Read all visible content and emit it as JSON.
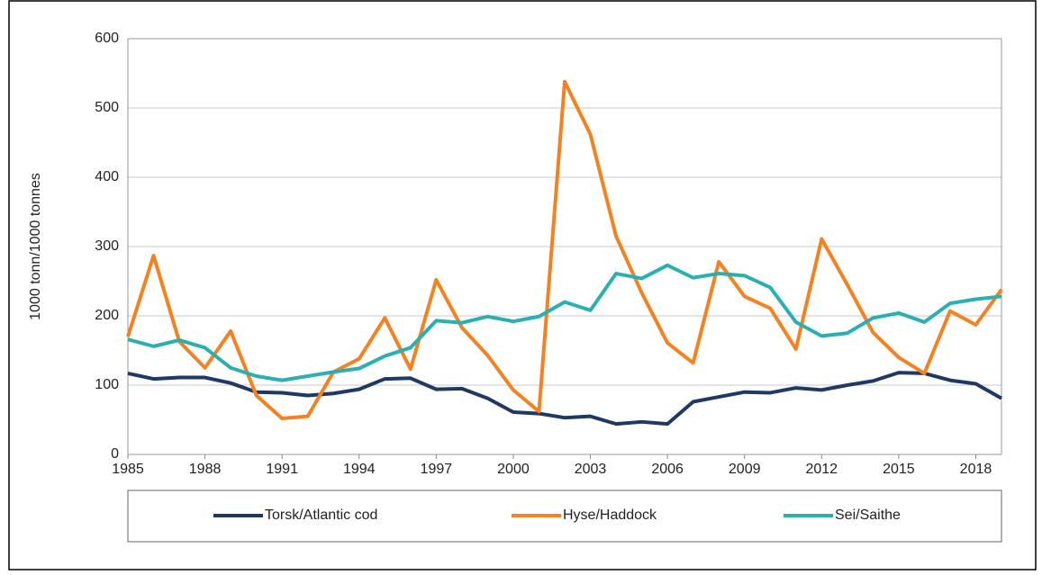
{
  "chart_data": {
    "type": "line",
    "y_label": "1000 tonn/1000 tonnes",
    "x": [
      1985,
      1986,
      1987,
      1988,
      1989,
      1990,
      1991,
      1992,
      1993,
      1994,
      1995,
      1996,
      1997,
      1998,
      1999,
      2000,
      2001,
      2002,
      2003,
      2004,
      2005,
      2006,
      2007,
      2008,
      2009,
      2010,
      2011,
      2012,
      2013,
      2014,
      2015,
      2016,
      2017,
      2018,
      2019
    ],
    "xlim": [
      1985,
      2019
    ],
    "xticks": [
      1985,
      1988,
      1991,
      1994,
      1997,
      2000,
      2003,
      2006,
      2009,
      2012,
      2015,
      2018
    ],
    "ylim": [
      0,
      600
    ],
    "yticks": [
      0,
      100,
      200,
      300,
      400,
      500,
      600
    ],
    "grid": true,
    "series": [
      {
        "name": "Torsk/Atlantic cod",
        "color": "#1f3864",
        "values": [
          117,
          109,
          111,
          111,
          103,
          90,
          89,
          85,
          88,
          94,
          109,
          110,
          94,
          95,
          81,
          61,
          59,
          53,
          55,
          44,
          47,
          44,
          76,
          83,
          90,
          89,
          96,
          93,
          100,
          106,
          118,
          117,
          107,
          102,
          81
        ]
      },
      {
        "name": "Hyse/Haddock",
        "color": "#f58220",
        "values": [
          170,
          287,
          163,
          125,
          178,
          85,
          52,
          55,
          119,
          138,
          197,
          123,
          252,
          183,
          143,
          93,
          62,
          538,
          462,
          315,
          233,
          161,
          132,
          278,
          228,
          211,
          152,
          311,
          245,
          176,
          140,
          117,
          207,
          187,
          238
        ]
      },
      {
        "name": "Sei/Saithe",
        "color": "#2ab0b0",
        "values": [
          166,
          156,
          165,
          154,
          125,
          113,
          107,
          113,
          119,
          124,
          142,
          154,
          193,
          190,
          199,
          192,
          199,
          220,
          208,
          261,
          254,
          273,
          255,
          261,
          258,
          241,
          191,
          171,
          175,
          197,
          204,
          191,
          218,
          224,
          228
        ]
      }
    ]
  }
}
